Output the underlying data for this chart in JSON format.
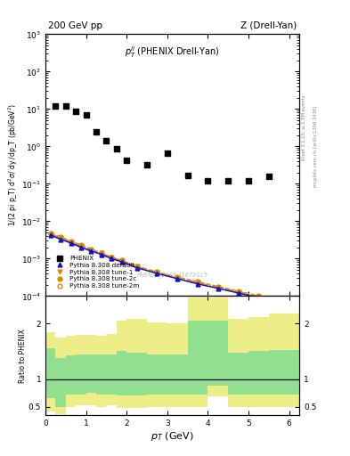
{
  "title_left": "200 GeV pp",
  "title_right": "Z (Drell-Yan)",
  "annotation": "$p_T^{ll}$ (PHENIX Drell-Yan)",
  "watermark": "PHENIX_2019_I1672015",
  "right_label1": "Rivet 3.1.10, ≥ 1.9M events",
  "right_label2": "mcplots.cern.ch [arXiv:1306.3436]",
  "xlabel": "$p_T$ (GeV)",
  "ylabel": "1/(2 pi p_T) d$^2\\sigma$/ dy /dp_T (pb/GeV$^2$)",
  "ratio_ylabel": "Ratio to PHENIX",
  "phenix_x": [
    0.25,
    0.5,
    0.75,
    1.0,
    1.25,
    1.5,
    1.75,
    2.0,
    2.5,
    3.0,
    3.5,
    4.0,
    4.5,
    5.0,
    5.5
  ],
  "phenix_y": [
    12.0,
    12.0,
    8.5,
    7.0,
    2.5,
    1.4,
    0.85,
    0.42,
    0.32,
    0.65,
    0.17,
    0.12,
    0.12,
    0.12,
    0.16
  ],
  "pythia_x": [
    0.125,
    0.375,
    0.625,
    0.875,
    1.125,
    1.375,
    1.625,
    1.875,
    2.25,
    2.75,
    3.25,
    3.75,
    4.25,
    4.75,
    5.25,
    5.75
  ],
  "pythia_default_y": [
    0.0042,
    0.0033,
    0.0026,
    0.002,
    0.0016,
    0.0013,
    0.001,
    0.00082,
    0.00057,
    0.0004,
    0.00029,
    0.00021,
    0.00016,
    0.00012,
    9e-05,
    6.8e-05
  ],
  "pythia_tune1_y": [
    0.0045,
    0.0036,
    0.0028,
    0.0022,
    0.0017,
    0.0014,
    0.00108,
    0.00088,
    0.00061,
    0.00043,
    0.00031,
    0.00023,
    0.00017,
    0.00013,
    9.7e-05,
    7.4e-05
  ],
  "pythia_tune2c_y": [
    0.0048,
    0.0038,
    0.0029,
    0.0023,
    0.0018,
    0.0014,
    0.0011,
    0.0009,
    0.00063,
    0.00044,
    0.00032,
    0.00024,
    0.00018,
    0.000135,
    0.0001,
    7.7e-05
  ],
  "pythia_tune2m_y": [
    0.0046,
    0.0036,
    0.0028,
    0.0022,
    0.0017,
    0.0013,
    0.00104,
    0.00085,
    0.00059,
    0.00042,
    0.0003,
    0.00023,
    0.00017,
    0.000128,
    9.6e-05,
    7.3e-05
  ],
  "ratio_bins": [
    0.0,
    0.25,
    0.5,
    0.75,
    1.0,
    1.25,
    1.5,
    1.75,
    2.0,
    2.5,
    3.0,
    3.5,
    4.0,
    4.5,
    5.0,
    5.5,
    6.25
  ],
  "ratio_green_lo": [
    0.65,
    0.5,
    0.72,
    0.72,
    0.75,
    0.72,
    0.72,
    0.7,
    0.7,
    0.72,
    0.72,
    0.72,
    0.88,
    0.72,
    0.72,
    0.72
  ],
  "ratio_green_hi": [
    1.55,
    1.38,
    1.42,
    1.45,
    1.45,
    1.45,
    1.45,
    1.5,
    1.48,
    1.45,
    1.45,
    2.05,
    2.05,
    1.48,
    1.5,
    1.52
  ],
  "ratio_yellow_lo": [
    0.42,
    0.36,
    0.5,
    0.52,
    0.52,
    0.5,
    0.52,
    0.48,
    0.48,
    0.5,
    0.5,
    0.5,
    0.68,
    0.5,
    0.5,
    0.5
  ],
  "ratio_yellow_hi": [
    1.85,
    1.75,
    1.78,
    1.8,
    1.8,
    1.78,
    1.82,
    2.05,
    2.08,
    2.02,
    2.0,
    2.48,
    2.48,
    2.08,
    2.12,
    2.18
  ],
  "ylim_main": [
    0.0001,
    1000.0
  ],
  "ylim_ratio": [
    0.35,
    2.5
  ],
  "xlim": [
    0,
    6.25
  ],
  "color_default": "#1111cc",
  "color_tune1": "#dd8800",
  "color_tune2c": "#dd8800",
  "color_tune2m": "#dd8800",
  "color_green": "#90e090",
  "color_yellow": "#eeee88",
  "bg_color": "#ffffff"
}
